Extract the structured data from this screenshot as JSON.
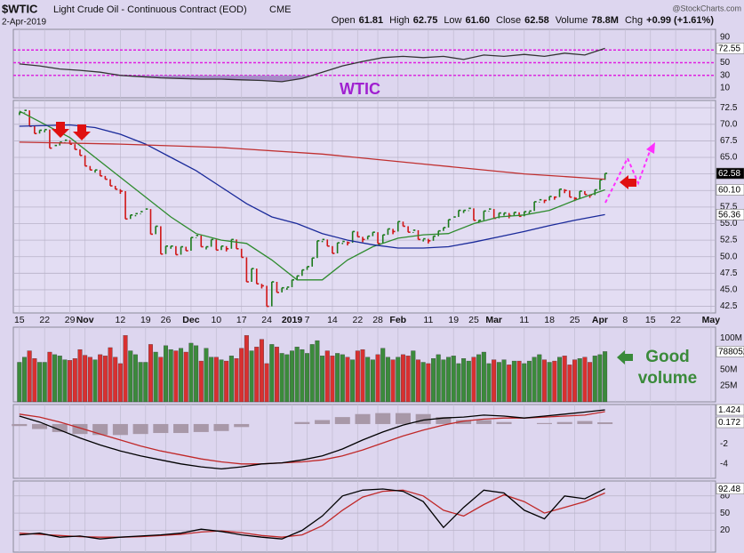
{
  "header": {
    "symbol": "$WTIC",
    "name": "Light Crude Oil - Continuous Contract (EOD)",
    "exchange": "CME",
    "date": "2-Apr-2019",
    "watermark": "@StockCharts.com",
    "quote": [
      {
        "label": "Open",
        "value": "61.81"
      },
      {
        "label": "High",
        "value": "62.75"
      },
      {
        "label": "Low",
        "value": "61.60"
      },
      {
        "label": "Close",
        "value": "62.58"
      },
      {
        "label": "Volume",
        "value": "78.8M"
      },
      {
        "label": "Chg",
        "value": "+0.99 (+1.61%)"
      }
    ]
  },
  "chart_data": [
    {
      "type": "line",
      "ylim": [
        -5.4,
        102.6
      ],
      "yticks": [
        90,
        50,
        30,
        10
      ],
      "grid": false,
      "ref_lines": [
        70,
        50,
        30
      ],
      "ref_color": "#e020e0",
      "fill_below": 30,
      "fill_color": "#a98cc9",
      "annotation": "WTIC",
      "annotation_color": "#a020d0",
      "series": [
        {
          "color": "#333333",
          "end_box": "#ffffff",
          "end_text": "#000000",
          "x": [
            0,
            4,
            8,
            12,
            16,
            20,
            24,
            28,
            32,
            36,
            40,
            44,
            48,
            52,
            56,
            60,
            64,
            68,
            72,
            76,
            80,
            84,
            88,
            92,
            96,
            100,
            104,
            108,
            112,
            116
          ],
          "values": [
            48,
            45,
            40,
            38,
            35,
            30,
            28,
            26,
            25,
            24,
            24,
            23,
            22,
            20,
            25,
            35,
            45,
            52,
            58,
            60,
            58,
            60,
            55,
            62,
            60,
            63,
            60,
            65,
            62,
            72.55
          ]
        }
      ]
    },
    {
      "type": "price",
      "xlim": [
        -1.2,
        137.9
      ],
      "ylim": [
        41.5,
        73.6
      ],
      "grid": true,
      "xticks": [
        {
          "value": 0,
          "label": "15"
        },
        {
          "value": 5,
          "label": "22"
        },
        {
          "value": 10,
          "label": "29"
        },
        {
          "value": 13,
          "label": "Nov"
        },
        {
          "value": 20,
          "label": "12"
        },
        {
          "value": 25,
          "label": "19"
        },
        {
          "value": 29,
          "label": "26"
        },
        {
          "value": 34,
          "label": "Dec"
        },
        {
          "value": 39,
          "label": "10"
        },
        {
          "value": 44,
          "label": "17"
        },
        {
          "value": 49,
          "label": "24"
        },
        {
          "value": 54,
          "label": "2019"
        },
        {
          "value": 57,
          "label": "7"
        },
        {
          "value": 62,
          "label": "14"
        },
        {
          "value": 67,
          "label": "22"
        },
        {
          "value": 71,
          "label": "28"
        },
        {
          "value": 75,
          "label": "Feb"
        },
        {
          "value": 81,
          "label": "11"
        },
        {
          "value": 86,
          "label": "19"
        },
        {
          "value": 90,
          "label": "25"
        },
        {
          "value": 94,
          "label": "Mar"
        },
        {
          "value": 100,
          "label": "11"
        },
        {
          "value": 105,
          "label": "18"
        },
        {
          "value": 110,
          "label": "25"
        },
        {
          "value": 115,
          "label": "Apr"
        },
        {
          "value": 120,
          "label": "8"
        },
        {
          "value": 125,
          "label": "15"
        },
        {
          "value": 130,
          "label": "22"
        },
        {
          "value": 137,
          "label": "May"
        }
      ],
      "yticks": [
        72.5,
        {
          "value": 70,
          "label": "70.0"
        },
        67.5,
        {
          "value": 65,
          "label": "65.0"
        },
        62.5,
        {
          "value": 60,
          "label": "60.0"
        },
        57.5,
        {
          "value": 55,
          "label": "55.0"
        },
        52.5,
        {
          "value": 50,
          "label": "50.0"
        },
        47.5,
        {
          "value": 45,
          "label": "45.0"
        },
        42.5
      ],
      "up_color": "#1b7a1b",
      "down_color": "#d01515",
      "end_box": "#000000",
      "end_text": "#ffffff",
      "close": [
        71.8,
        72.1,
        69.7,
        68.6,
        69.1,
        69.2,
        66.4,
        66.8,
        67.3,
        67.6,
        67.0,
        66.2,
        65.3,
        63.7,
        63.1,
        63.1,
        62.2,
        61.7,
        60.7,
        60.2,
        59.9,
        55.7,
        56.3,
        56.5,
        56.8,
        57.2,
        53.4,
        54.6,
        50.4,
        51.6,
        51.6,
        50.3,
        51.5,
        50.9,
        52.9,
        53.2,
        51.5,
        51.5,
        52.6,
        51.0,
        51.6,
        51.2,
        52.6,
        51.2,
        49.9,
        46.2,
        48.2,
        45.9,
        45.6,
        42.5,
        46.2,
        44.6,
        45.3,
        45.4,
        46.5,
        47.1,
        48.0,
        48.5,
        49.8,
        52.4,
        52.6,
        51.6,
        50.5,
        52.1,
        52.3,
        52.1,
        53.8,
        53.0,
        52.6,
        53.1,
        53.7,
        52.0,
        53.3,
        54.2,
        53.8,
        55.3,
        54.6,
        53.7,
        54.0,
        52.6,
        52.7,
        52.4,
        53.1,
        53.9,
        54.4,
        55.6,
        56.0,
        57.0,
        57.0,
        57.3,
        55.5,
        55.5,
        56.9,
        57.2,
        55.8,
        56.6,
        56.6,
        56.2,
        56.7,
        56.1,
        56.8,
        56.9,
        58.3,
        58.6,
        58.5,
        59.1,
        59.0,
        60.2,
        60.0,
        59.0,
        58.8,
        59.9,
        59.4,
        59.3,
        60.1,
        61.6,
        62.58
      ],
      "series": [
        {
          "color": "#2e8b2e",
          "end_label": "60.10",
          "end_box": "#ffffff",
          "end_text": "#000000",
          "x": [
            0,
            10,
            20,
            30,
            35,
            40,
            45,
            50,
            55,
            60,
            65,
            70,
            75,
            80,
            85,
            90,
            95,
            100,
            105,
            110,
            116
          ],
          "values": [
            72,
            68,
            62,
            56,
            53.5,
            52.5,
            52,
            49.5,
            46.5,
            46.5,
            49.5,
            51.5,
            52.8,
            53.3,
            53.5,
            55,
            56,
            56.3,
            57,
            58.5,
            60.1
          ]
        },
        {
          "color": "#1a2a9a",
          "end_label": "56.36",
          "end_box": "#ffffff",
          "end_text": "#000000",
          "x": [
            0,
            10,
            15,
            20,
            25,
            30,
            35,
            40,
            45,
            50,
            55,
            60,
            65,
            70,
            75,
            80,
            85,
            90,
            95,
            100,
            105,
            110,
            116
          ],
          "values": [
            69.7,
            69.9,
            69.5,
            68.5,
            67,
            65,
            63,
            60.5,
            58,
            56,
            55,
            53.5,
            52.5,
            51.8,
            51.3,
            51.3,
            51.5,
            52.2,
            53,
            53.8,
            54.7,
            55.5,
            56.36
          ]
        },
        {
          "color": "#c03030",
          "x": [
            0,
            20,
            40,
            60,
            80,
            100,
            116
          ],
          "values": [
            67.3,
            67,
            66.5,
            65.5,
            64,
            62.5,
            61.7
          ]
        }
      ]
    },
    {
      "type": "bar",
      "ylim": [
        0,
        117000000.0
      ],
      "grid": false,
      "yticks": [
        {
          "value": 100000000.0,
          "label": "100M"
        },
        {
          "value": 75000000.0,
          "label": "75M"
        },
        {
          "value": 50000000.0,
          "label": "50M"
        },
        {
          "value": 25000000.0,
          "label": "25M"
        }
      ],
      "up_color": "#3b8a3b",
      "down_color": "#d83030",
      "end_box": "#ffffff",
      "end_text": "#000000",
      "annotation": [
        "Good",
        "volume"
      ],
      "annotation_color": "#3a8a3a",
      "values": [
        62000000.0,
        70000000.0,
        80000000.0,
        68000000.0,
        62000000.0,
        62000000.0,
        78000000.0,
        74000000.0,
        72000000.0,
        66000000.0,
        65000000.0,
        68000000.0,
        82000000.0,
        73000000.0,
        70000000.0,
        66000000.0,
        74000000.0,
        72000000.0,
        85000000.0,
        70000000.0,
        60000000.0,
        104000000.0,
        80000000.0,
        74000000.0,
        62000000.0,
        62000000.0,
        90000000.0,
        78000000.0,
        70000000.0,
        88000000.0,
        82000000.0,
        80000000.0,
        84000000.0,
        78000000.0,
        92000000.0,
        88000000.0,
        64000000.0,
        84000000.0,
        70000000.0,
        70000000.0,
        66000000.0,
        64000000.0,
        72000000.0,
        68000000.0,
        84000000.0,
        104000000.0,
        80000000.0,
        86000000.0,
        98000000.0,
        60000000.0,
        90000000.0,
        86000000.0,
        76000000.0,
        74000000.0,
        80000000.0,
        86000000.0,
        82000000.0,
        76000000.0,
        90000000.0,
        96000000.0,
        72000000.0,
        80000000.0,
        72000000.0,
        76000000.0,
        74000000.0,
        70000000.0,
        66000000.0,
        80000000.0,
        82000000.0,
        70000000.0,
        66000000.0,
        74000000.0,
        84000000.0,
        70000000.0,
        66000000.0,
        70000000.0,
        74000000.0,
        72000000.0,
        80000000.0,
        66000000.0,
        62000000.0,
        60000000.0,
        68000000.0,
        74000000.0,
        66000000.0,
        70000000.0,
        72000000.0,
        60000000.0,
        68000000.0,
        64000000.0,
        70000000.0,
        74000000.0,
        78000000.0,
        60000000.0,
        66000000.0,
        62000000.0,
        66000000.0,
        58000000.0,
        64000000.0,
        64000000.0,
        60000000.0,
        64000000.0,
        70000000.0,
        74000000.0,
        66000000.0,
        62000000.0,
        64000000.0,
        70000000.0,
        72000000.0,
        58000000.0,
        66000000.0,
        68000000.0,
        70000000.0,
        62000000.0,
        72000000.0,
        74000000.0,
        78805200
      ]
    },
    {
      "type": "line",
      "ylim": [
        -5.45,
        1.96
      ],
      "yticks": [
        -2,
        -4
      ],
      "grid": false,
      "series": [
        {
          "color": "#a898a8",
          "style": "hist",
          "end_box": "#ffffff",
          "end_text": "#000000",
          "x": [
            0,
            4,
            8,
            12,
            16,
            20,
            24,
            28,
            32,
            36,
            40,
            44,
            48,
            52,
            56,
            60,
            64,
            68,
            72,
            76,
            80,
            84,
            88,
            92,
            96,
            100,
            104,
            108,
            112,
            116
          ],
          "values": [
            -0.2,
            -0.5,
            -0.8,
            -1.0,
            -1.1,
            -1.1,
            -1.0,
            -0.9,
            -0.9,
            -0.8,
            -0.7,
            -0.3,
            0,
            0,
            0.2,
            0.4,
            0.7,
            1.0,
            1.1,
            1.1,
            1.0,
            0.7,
            0.4,
            0.4,
            0.2,
            0,
            0.1,
            0.2,
            0.3,
            0.172
          ]
        },
        {
          "color": "#c02828",
          "x": [
            0,
            4,
            8,
            12,
            16,
            20,
            24,
            28,
            32,
            36,
            40,
            44,
            48,
            52,
            56,
            60,
            64,
            68,
            72,
            76,
            80,
            84,
            88,
            92,
            96,
            100,
            104,
            108,
            112,
            116
          ],
          "values": [
            1.0,
            0.7,
            0.2,
            -0.4,
            -1.0,
            -1.6,
            -2.2,
            -2.7,
            -3.1,
            -3.5,
            -3.8,
            -4.0,
            -4.0,
            -3.9,
            -3.8,
            -3.6,
            -3.2,
            -2.6,
            -1.9,
            -1.2,
            -0.6,
            -0.1,
            0.3,
            0.5,
            0.6,
            0.6,
            0.7,
            0.8,
            0.9,
            1.25
          ]
        },
        {
          "color": "#000000",
          "end_box": "#ffffff",
          "end_text": "#000000",
          "x": [
            0,
            4,
            8,
            12,
            16,
            20,
            24,
            28,
            32,
            36,
            40,
            44,
            48,
            52,
            56,
            60,
            64,
            68,
            72,
            76,
            80,
            84,
            88,
            92,
            96,
            100,
            104,
            108,
            112,
            116
          ],
          "values": [
            0.8,
            0.2,
            -0.6,
            -1.4,
            -2.1,
            -2.7,
            -3.2,
            -3.6,
            -4.0,
            -4.3,
            -4.5,
            -4.3,
            -4.0,
            -3.9,
            -3.6,
            -3.2,
            -2.5,
            -1.6,
            -0.8,
            -0.1,
            0.4,
            0.6,
            0.7,
            0.9,
            0.8,
            0.6,
            0.8,
            1.0,
            1.2,
            1.424
          ]
        }
      ]
    },
    {
      "type": "line",
      "ylim": [
        -18,
        106
      ],
      "yticks": [
        80,
        50,
        20
      ],
      "grid": true,
      "series": [
        {
          "color": "#c02828",
          "x": [
            0,
            4,
            8,
            12,
            16,
            20,
            24,
            28,
            32,
            36,
            40,
            44,
            48,
            52,
            56,
            60,
            64,
            68,
            72,
            76,
            80,
            84,
            88,
            92,
            96,
            100,
            104,
            108,
            112,
            116
          ],
          "values": [
            15,
            13,
            11,
            9,
            8,
            8,
            9,
            11,
            13,
            17,
            19,
            16,
            11,
            8,
            12,
            28,
            55,
            78,
            88,
            90,
            80,
            55,
            45,
            65,
            82,
            70,
            50,
            60,
            70,
            85
          ]
        },
        {
          "color": "#000000",
          "end_box": "#ffffff",
          "end_text": "#000000",
          "x": [
            0,
            4,
            8,
            12,
            16,
            20,
            24,
            28,
            32,
            36,
            40,
            44,
            48,
            52,
            56,
            60,
            64,
            68,
            72,
            76,
            80,
            84,
            88,
            92,
            96,
            100,
            104,
            108,
            112,
            116
          ],
          "values": [
            12,
            15,
            8,
            10,
            5,
            8,
            10,
            12,
            15,
            22,
            18,
            12,
            8,
            5,
            20,
            45,
            80,
            90,
            92,
            88,
            70,
            25,
            60,
            90,
            85,
            55,
            40,
            80,
            75,
            92.48
          ]
        }
      ]
    }
  ]
}
